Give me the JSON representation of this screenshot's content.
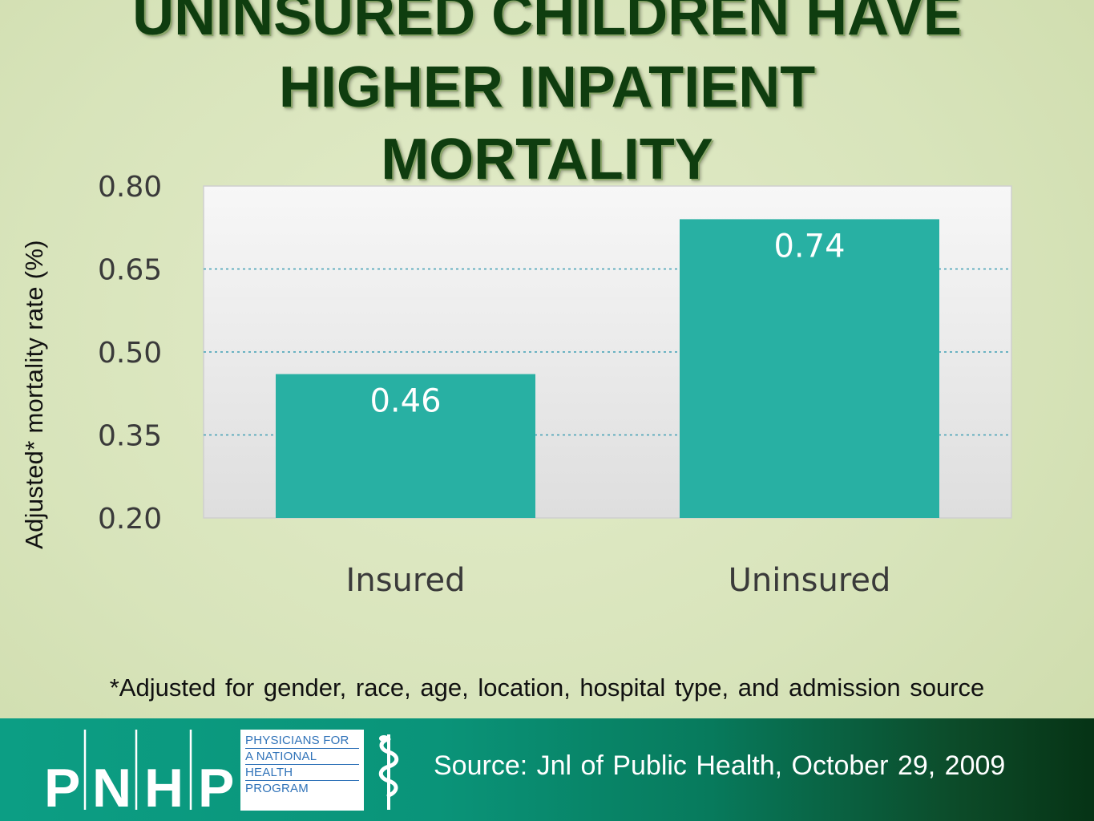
{
  "title_lines": [
    "UNINSURED CHILDREN HAVE",
    "HIGHER INPATIENT",
    "MORTALITY"
  ],
  "chart_data": {
    "type": "bar",
    "categories": [
      "Insured",
      "Uninsured"
    ],
    "values": [
      0.46,
      0.74
    ],
    "data_labels": [
      "0.46",
      "0.74"
    ],
    "ylabel": "Adjusted* mortality rate (%)",
    "xlabel": "",
    "ylim": [
      0.2,
      0.8
    ],
    "yticks": [
      "0.80",
      "0.65",
      "0.50",
      "0.35",
      "0.20"
    ],
    "grid": "horizontal dashed",
    "colors": {
      "bar": "#28b0a3",
      "grid": "#3f9fb4",
      "plot_bg_top": "#f7f7f7",
      "plot_bg_bottom": "#dedede",
      "tick_text": "#3a3a3a",
      "label_text": "#ffffff"
    }
  },
  "footnote": "*Adjusted for gender, race, age, location, hospital type, and admission source",
  "footer": {
    "logo_letters": [
      "P",
      "N",
      "H",
      "P"
    ],
    "logo_box_lines": [
      "PHYSICIANS FOR",
      "A NATIONAL",
      "HEALTH",
      "PROGRAM"
    ],
    "logo_icon": "caduceus-icon",
    "source": "Source: Jnl of Public Health, October 29, 2009"
  }
}
